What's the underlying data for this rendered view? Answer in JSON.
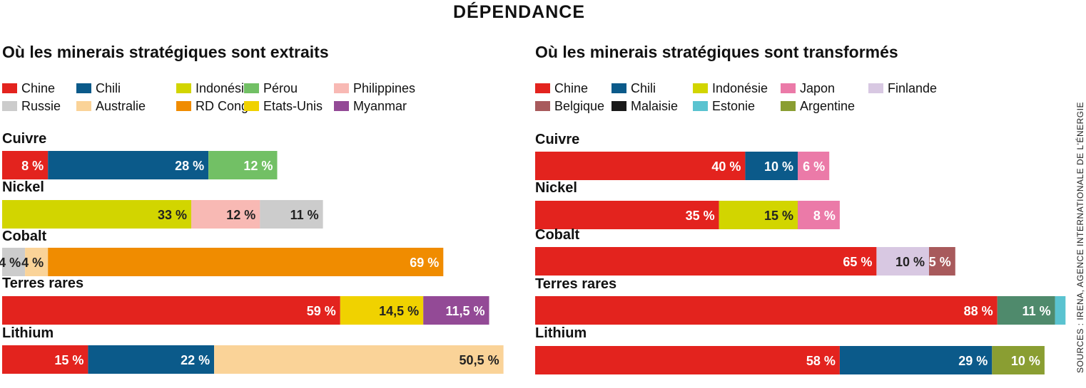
{
  "title": "DÉPENDANCE",
  "source": "SOURCES : IRENA, AGENCE INTERNATIONALE DE L'ÉNERGIE",
  "chart_data": [
    {
      "type": "bar",
      "orientation": "horizontal",
      "stacked": true,
      "title": "Où les minerais stratégiques sont extraits",
      "xlim": [
        0,
        100
      ],
      "categories": [
        "Cuivre",
        "Nickel",
        "Cobalt",
        "Terres rares",
        "Lithium"
      ],
      "legend": [
        {
          "name": "Chine",
          "color": "#e3231e"
        },
        {
          "name": "Chili",
          "color": "#0b5a8a"
        },
        {
          "name": "Indonésie",
          "color": "#d2d500"
        },
        {
          "name": "Pérou",
          "color": "#72c065"
        },
        {
          "name": "Philippines",
          "color": "#f8b9b4"
        },
        {
          "name": "Russie",
          "color": "#cccccc"
        },
        {
          "name": "Australie",
          "color": "#fad398"
        },
        {
          "name": "RD Congo",
          "color": "#f08c00"
        },
        {
          "name": "Etats-Unis",
          "color": "#f0d200"
        },
        {
          "name": "Myanmar",
          "color": "#934a96"
        }
      ],
      "bars": [
        {
          "category": "Cuivre",
          "segments": [
            {
              "name": "Chine",
              "value": 8,
              "label": "8 %",
              "label_color": "#ffffff"
            },
            {
              "name": "Chili",
              "value": 28,
              "label": "28 %",
              "label_color": "#ffffff"
            },
            {
              "name": "Pérou",
              "value": 12,
              "label": "12 %",
              "label_color": "#ffffff"
            }
          ]
        },
        {
          "category": "Nickel",
          "segments": [
            {
              "name": "Indonésie",
              "value": 33,
              "label": "33 %",
              "label_color": "#222222"
            },
            {
              "name": "Philippines",
              "value": 12,
              "label": "12 %",
              "label_color": "#222222"
            },
            {
              "name": "Russie",
              "value": 11,
              "label": "11 %",
              "label_color": "#222222"
            }
          ]
        },
        {
          "category": "Cobalt",
          "segments": [
            {
              "name": "Russie",
              "value": 4,
              "label": "4 %",
              "label_color": "#222222"
            },
            {
              "name": "Australie",
              "value": 4,
              "label": "4 %",
              "label_color": "#222222"
            },
            {
              "name": "RD Congo",
              "value": 69,
              "label": "69 %",
              "label_color": "#ffffff"
            }
          ]
        },
        {
          "category": "Terres rares",
          "segments": [
            {
              "name": "Chine",
              "value": 59,
              "label": "59 %",
              "label_color": "#ffffff"
            },
            {
              "name": "Etats-Unis",
              "value": 14.5,
              "label": "14,5 %",
              "label_color": "#222222"
            },
            {
              "name": "Myanmar",
              "value": 11.5,
              "label": "11,5 %",
              "label_color": "#ffffff"
            }
          ]
        },
        {
          "category": "Lithium",
          "segments": [
            {
              "name": "Chine",
              "value": 15,
              "label": "15 %",
              "label_color": "#ffffff"
            },
            {
              "name": "Chili",
              "value": 22,
              "label": "22 %",
              "label_color": "#ffffff"
            },
            {
              "name": "Australie",
              "value": 50.5,
              "label": "50,5 %",
              "label_color": "#222222"
            }
          ]
        }
      ]
    },
    {
      "type": "bar",
      "orientation": "horizontal",
      "stacked": true,
      "title": "Où les minerais stratégiques sont transformés",
      "xlim": [
        0,
        100
      ],
      "categories": [
        "Cuivre",
        "Nickel",
        "Cobalt",
        "Terres rares",
        "Lithium"
      ],
      "legend": [
        {
          "name": "Chine",
          "color": "#e3231e"
        },
        {
          "name": "Chili",
          "color": "#0b5a8a"
        },
        {
          "name": "Indonésie",
          "color": "#d2d500"
        },
        {
          "name": "Japon",
          "color": "#eb7aa8"
        },
        {
          "name": "Finlande",
          "color": "#d8c8e2"
        },
        {
          "name": "Belgique",
          "color": "#a85a5c"
        },
        {
          "name": "Malaisie",
          "color": "#1a1a1a"
        },
        {
          "name": "Estonie",
          "color": "#5ac3d0"
        },
        {
          "name": "Argentine",
          "color": "#8a9e32"
        }
      ],
      "bars": [
        {
          "category": "Cuivre",
          "segments": [
            {
              "name": "Chine",
              "value": 40,
              "label": "40 %",
              "label_color": "#ffffff"
            },
            {
              "name": "Chili",
              "value": 10,
              "label": "10 %",
              "label_color": "#ffffff"
            },
            {
              "name": "Japon",
              "value": 6,
              "label": "6 %",
              "label_color": "#ffffff"
            }
          ]
        },
        {
          "category": "Nickel",
          "segments": [
            {
              "name": "Chine",
              "value": 35,
              "label": "35 %",
              "label_color": "#ffffff"
            },
            {
              "name": "Indonésie",
              "value": 15,
              "label": "15 %",
              "label_color": "#222222"
            },
            {
              "name": "Japon",
              "value": 8,
              "label": "8 %",
              "label_color": "#ffffff"
            }
          ]
        },
        {
          "category": "Cobalt",
          "segments": [
            {
              "name": "Chine",
              "value": 65,
              "label": "65 %",
              "label_color": "#ffffff"
            },
            {
              "name": "Finlande",
              "value": 10,
              "label": "10 %",
              "label_color": "#222222"
            },
            {
              "name": "Belgique",
              "value": 5,
              "label": "5 %",
              "label_color": "#ffffff"
            }
          ]
        },
        {
          "category": "Terres rares",
          "segments": [
            {
              "name": "Chine",
              "value": 88,
              "label": "88 %",
              "label_color": "#ffffff"
            },
            {
              "name": "Malaisie",
              "value": 11,
              "label": "11 %",
              "label_color": "#ffffff",
              "color": "#4f8a6c"
            },
            {
              "name": "Estonie",
              "value": 2,
              "label": "",
              "label_color": "#ffffff"
            }
          ]
        },
        {
          "category": "Lithium",
          "segments": [
            {
              "name": "Chine",
              "value": 58,
              "label": "58 %",
              "label_color": "#ffffff"
            },
            {
              "name": "Chili",
              "value": 29,
              "label": "29 %",
              "label_color": "#ffffff"
            },
            {
              "name": "Argentine",
              "value": 10,
              "label": "10 %",
              "label_color": "#ffffff"
            }
          ]
        }
      ]
    }
  ]
}
